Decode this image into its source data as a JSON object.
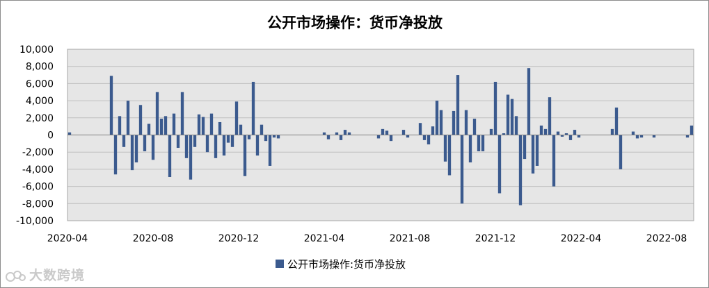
{
  "watermark": "大数跨境",
  "colors": {
    "bar": "#3b5a8e",
    "plot_bg": "#e6e6e6",
    "grid": "#bfbfbf"
  },
  "chart_data": {
    "type": "bar",
    "title": "公开市场操作：货币净投放",
    "legend": [
      "公开市场操作:货币净投放"
    ],
    "legend_position": "bottom",
    "grid": true,
    "ylim": [
      -10000,
      10000
    ],
    "yticks": [
      "10,000",
      "8,000",
      "6,000",
      "4,000",
      "2,000",
      "0",
      "-2,000",
      "-4,000",
      "-6,000",
      "-8,000",
      "-10,000"
    ],
    "xticks": [
      "2020-04",
      "2020-08",
      "2020-12",
      "2021-04",
      "2021-08",
      "2021-12",
      "2022-04",
      "2022-08"
    ],
    "series": [
      {
        "name": "公开市场操作:货币净投放",
        "values": [
          300,
          0,
          0,
          0,
          0,
          0,
          0,
          0,
          0,
          0,
          6900,
          -4600,
          2200,
          -1400,
          4000,
          -4100,
          -3200,
          3500,
          -1900,
          1300,
          -2900,
          5000,
          1900,
          2200,
          -4900,
          2500,
          -1500,
          5000,
          -2700,
          -5200,
          -1400,
          2400,
          2100,
          -2000,
          2500,
          -2700,
          1500,
          -2400,
          -900,
          -1400,
          3900,
          1200,
          -4800,
          -500,
          6200,
          -2400,
          1200,
          -700,
          -3600,
          -300,
          -400,
          0,
          0,
          0,
          0,
          0,
          0,
          0,
          0,
          0,
          0,
          300,
          -500,
          0,
          300,
          -600,
          600,
          300,
          0,
          0,
          0,
          0,
          0,
          0,
          -400,
          700,
          500,
          -700,
          0,
          0,
          600,
          -300,
          0,
          0,
          1400,
          -600,
          -1100,
          1000,
          4000,
          2900,
          -3100,
          -4700,
          2800,
          7000,
          -8000,
          2900,
          -3200,
          1900,
          -1900,
          -1900,
          0,
          700,
          6200,
          -6800,
          200,
          4700,
          4200,
          2200,
          -8200,
          -2800,
          7800,
          -4500,
          -3600,
          1100,
          700,
          4400,
          -6000,
          400,
          -200,
          200,
          -600,
          600,
          -300,
          0,
          0,
          0,
          0,
          0,
          0,
          0,
          700,
          3200,
          -4000,
          0,
          0,
          400,
          -400,
          -300,
          0,
          0,
          -300,
          0,
          0,
          0,
          0,
          0,
          0,
          0,
          -300,
          1100
        ]
      }
    ]
  }
}
